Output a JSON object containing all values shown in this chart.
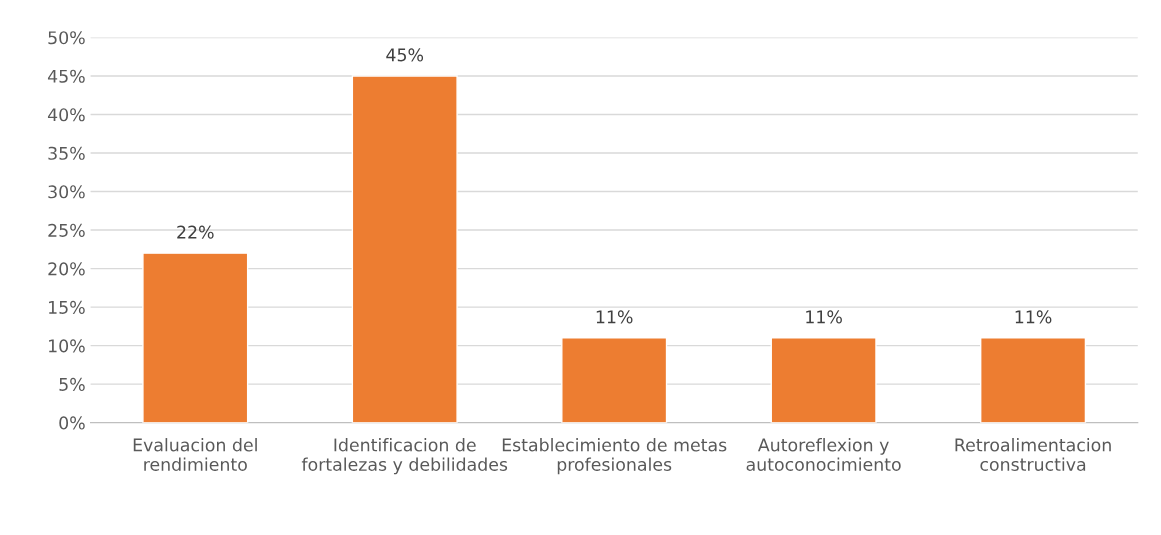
{
  "chart_data": {
    "type": "bar",
    "categories": [
      "Evaluacion del rendimiento",
      "Identificacion de fortalezas y debilidades",
      "Establecimiento de metas profesionales",
      "Autoreflexion y autoconocimiento",
      "Retroalimentacion constructiva"
    ],
    "values": [
      22,
      45,
      11,
      11,
      11
    ],
    "value_labels": [
      "22%",
      "45%",
      "11%",
      "11%",
      "11%"
    ],
    "color": "#ed7d31",
    "ylim": [
      0,
      50
    ],
    "yticks": [
      {
        "value": 0,
        "label": "0%"
      },
      {
        "value": 5,
        "label": "5%"
      },
      {
        "value": 10,
        "label": "10%"
      },
      {
        "value": 15,
        "label": "15%"
      },
      {
        "value": 20,
        "label": "20%"
      },
      {
        "value": 25,
        "label": "25%"
      },
      {
        "value": 30,
        "label": "30%"
      },
      {
        "value": 35,
        "label": "35%"
      },
      {
        "value": 40,
        "label": "40%"
      },
      {
        "value": 45,
        "label": "45%"
      },
      {
        "value": 50,
        "label": "50%"
      }
    ],
    "grid": "y"
  }
}
